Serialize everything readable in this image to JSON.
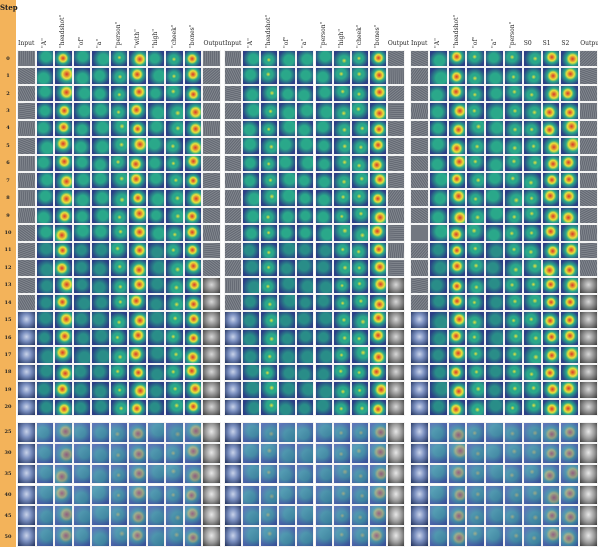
{
  "step_header": "Step",
  "steps_top": [
    "0",
    "1",
    "2",
    "3",
    "4",
    "5",
    "6",
    "7",
    "8",
    "9",
    "10",
    "11",
    "12",
    "13",
    "14",
    "15",
    "16",
    "17",
    "18",
    "19",
    "20"
  ],
  "steps_bottom": [
    "25",
    "30",
    "35",
    "40",
    "45",
    "50"
  ],
  "panels": [
    {
      "columns": [
        "Input",
        "\"A\"",
        "\"headshot\"",
        "\"of\"",
        "\"a\"",
        "\"person\"",
        "\"with\"",
        "\"high\"",
        "\"cheek\"",
        "\"bones\"",
        "Output"
      ],
      "hot_columns": [
        2,
        6,
        9
      ],
      "warm_columns": [
        5,
        8
      ]
    },
    {
      "columns": [
        "Input",
        "\"A\"",
        "\"headshot\"",
        "\"of\"",
        "\"a\"",
        "\"person\"",
        "\"high\"",
        "\"cheek\"",
        "\"bones\"",
        "Output"
      ],
      "hot_columns": [
        8
      ],
      "warm_columns": [
        2,
        6,
        7
      ]
    },
    {
      "columns": [
        "Input",
        "\"A\"",
        "\"headshot\"",
        "\"of\"",
        "\"a\"",
        "\"person\"",
        "S0",
        "S1",
        "S2",
        "Output"
      ],
      "hot_columns": [
        2,
        7,
        8
      ],
      "warm_columns": [
        3,
        5,
        6
      ]
    }
  ],
  "colors": {
    "step_bar": "#f3b35a",
    "heat_low": "#2c3f86",
    "heat_mid": "#2aa88a",
    "heat_high": "#e8e33a",
    "heat_peak": "#d8352a",
    "noise_a": "#5a5f6a",
    "noise_b": "#8a8f96",
    "face_a": "#7a8fbf",
    "face_b": "#c9d3ea"
  }
}
